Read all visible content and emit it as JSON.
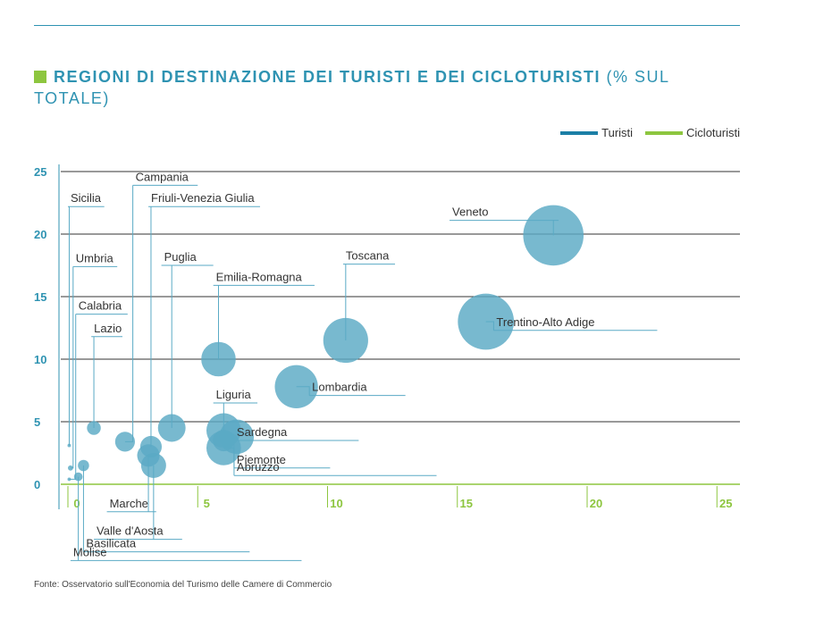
{
  "title": {
    "bold": "REGIONI DI DESTINAZIONE DEI TURISTI E DEI CICLOTURISTI",
    "rest": "(% SUL TOTALE)"
  },
  "legend": [
    {
      "label": "Turisti",
      "color": "#1c7fa6"
    },
    {
      "label": "Cicloturisti",
      "color": "#8dc63f"
    }
  ],
  "source": "Fonte: Osservatorio sull'Economia del Turismo delle Camere di Commercio",
  "colors": {
    "bubble": "#5aaac5",
    "bubble_dark": "#2b8db2",
    "y_axis": "#2f93b2",
    "x_axis": "#8dc63f",
    "grid": "#333333"
  },
  "chart_data": {
    "type": "scatter",
    "subtype": "bubble",
    "x_axis_series": "Cicloturisti",
    "y_axis_series": "Turisti",
    "xlim": [
      0,
      25
    ],
    "ylim": [
      0,
      25
    ],
    "x_ticks": [
      0,
      5,
      10,
      15,
      20,
      25
    ],
    "y_ticks": [
      0,
      5,
      10,
      15,
      20,
      25
    ],
    "points": [
      {
        "name": "Veneto",
        "x": 18.7,
        "y": 19.9,
        "r": 7.0
      },
      {
        "name": "Trentino-Alto Adige",
        "x": 16.1,
        "y": 13.0,
        "r": 6.5
      },
      {
        "name": "Toscana",
        "x": 10.7,
        "y": 11.5,
        "r": 5.2
      },
      {
        "name": "Lombardia",
        "x": 8.8,
        "y": 7.8,
        "r": 5.0
      },
      {
        "name": "Emilia-Romagna",
        "x": 5.8,
        "y": 10.0,
        "r": 4.0
      },
      {
        "name": "Liguria",
        "x": 6.0,
        "y": 4.3,
        "r": 4.0
      },
      {
        "name": "Sardegna",
        "x": 6.5,
        "y": 3.8,
        "r": 4.0
      },
      {
        "name": "Piemonte",
        "x": 6.0,
        "y": 2.9,
        "r": 4.0
      },
      {
        "name": "Abruzzo",
        "x": 6.0,
        "y": 3.5,
        "r": 2.5
      },
      {
        "name": "Puglia",
        "x": 4.0,
        "y": 4.5,
        "r": 3.2
      },
      {
        "name": "Friuli-Venezia Giulia",
        "x": 3.2,
        "y": 3.0,
        "r": 2.5
      },
      {
        "name": "Campania",
        "x": 2.2,
        "y": 3.4,
        "r": 2.3
      },
      {
        "name": "Marche",
        "x": 3.1,
        "y": 2.3,
        "r": 2.6
      },
      {
        "name": "Valle d'Aosta",
        "x": 3.3,
        "y": 1.5,
        "r": 2.9
      },
      {
        "name": "Lazio",
        "x": 1.0,
        "y": 4.5,
        "r": 1.6
      },
      {
        "name": "Basilicata",
        "x": 0.6,
        "y": 1.5,
        "r": 1.3
      },
      {
        "name": "Molise",
        "x": 0.4,
        "y": 0.6,
        "r": 1.0
      },
      {
        "name": "Umbria",
        "x": 0.1,
        "y": 1.3,
        "r": 0.6
      },
      {
        "name": "Calabria",
        "x": 0.05,
        "y": 0.4,
        "r": 0.4
      },
      {
        "name": "Sicilia",
        "x": 0.05,
        "y": 3.1,
        "r": 0.4
      }
    ],
    "labels": [
      {
        "text": "Sicilia",
        "x1": 0.0,
        "y1": 22.2,
        "x2": 1.4,
        "lead_to": "Sicilia"
      },
      {
        "text": "Campania",
        "x1": 2.5,
        "y1": 23.9,
        "x2": 5.0,
        "lead_to": "Campania"
      },
      {
        "text": "Friuli-Venezia Giulia",
        "x1": 3.1,
        "y1": 22.2,
        "x2": 7.4,
        "lead_to": "Friuli-Venezia Giulia"
      },
      {
        "text": "Umbria",
        "x1": 0.2,
        "y1": 17.4,
        "x2": 1.9,
        "lead_to": "Umbria"
      },
      {
        "text": "Puglia",
        "x1": 3.6,
        "y1": 17.5,
        "x2": 5.6,
        "lead_to": "Puglia"
      },
      {
        "text": "Emilia-Romagna",
        "x1": 5.6,
        "y1": 15.9,
        "x2": 9.5,
        "lead_to": "Emilia-Romagna"
      },
      {
        "text": "Calabria",
        "x1": 0.3,
        "y1": 13.6,
        "x2": 2.3,
        "lead_to": "Calabria"
      },
      {
        "text": "Lazio",
        "x1": 0.9,
        "y1": 11.8,
        "x2": 2.1,
        "lead_to": "Lazio"
      },
      {
        "text": "Toscana",
        "x1": 10.6,
        "y1": 17.6,
        "x2": 12.6,
        "lead_to": "Toscana"
      },
      {
        "text": "Veneto",
        "x1": 14.7,
        "y1": 21.1,
        "x2": 18.9,
        "lead_to": "Veneto"
      },
      {
        "text": "Trentino-Alto Adige",
        "x1": 16.4,
        "y1": 12.3,
        "x2": 22.7,
        "lead_to": "Trentino-Alto Adige"
      },
      {
        "text": "Lombardia",
        "x1": 9.3,
        "y1": 7.1,
        "x2": 13.0,
        "lead_to": "Lombardia"
      },
      {
        "text": "Liguria",
        "x1": 5.6,
        "y1": 6.5,
        "x2": 7.3,
        "lead_to": "Liguria"
      },
      {
        "text": "Sardegna",
        "x1": 6.4,
        "y1": 3.5,
        "x2": 11.2,
        "lead_to": "Sardegna"
      },
      {
        "text": "Piemonte",
        "x1": 6.4,
        "y1": 1.3,
        "x2": 10.1,
        "lead_to": "Piemonte"
      },
      {
        "text": "Abruzzo",
        "x1": 6.4,
        "y1": 0.7,
        "x2": 14.2,
        "lead_to": "Abruzzo"
      },
      {
        "text": "Marche",
        "x1": 1.5,
        "y1": -2.2,
        "x2": 3.4,
        "lead_to": "Marche"
      },
      {
        "text": "Valle d'Aosta",
        "x1": 1.0,
        "y1": -4.4,
        "x2": 4.4,
        "lead_to": "Valle d'Aosta"
      },
      {
        "text": "Basilicata",
        "x1": 0.6,
        "y1": -5.4,
        "x2": 7.0,
        "lead_to": "Basilicata"
      },
      {
        "text": "Molise",
        "x1": 0.1,
        "y1": -6.1,
        "x2": 9.0,
        "lead_to": "Molise"
      }
    ]
  }
}
